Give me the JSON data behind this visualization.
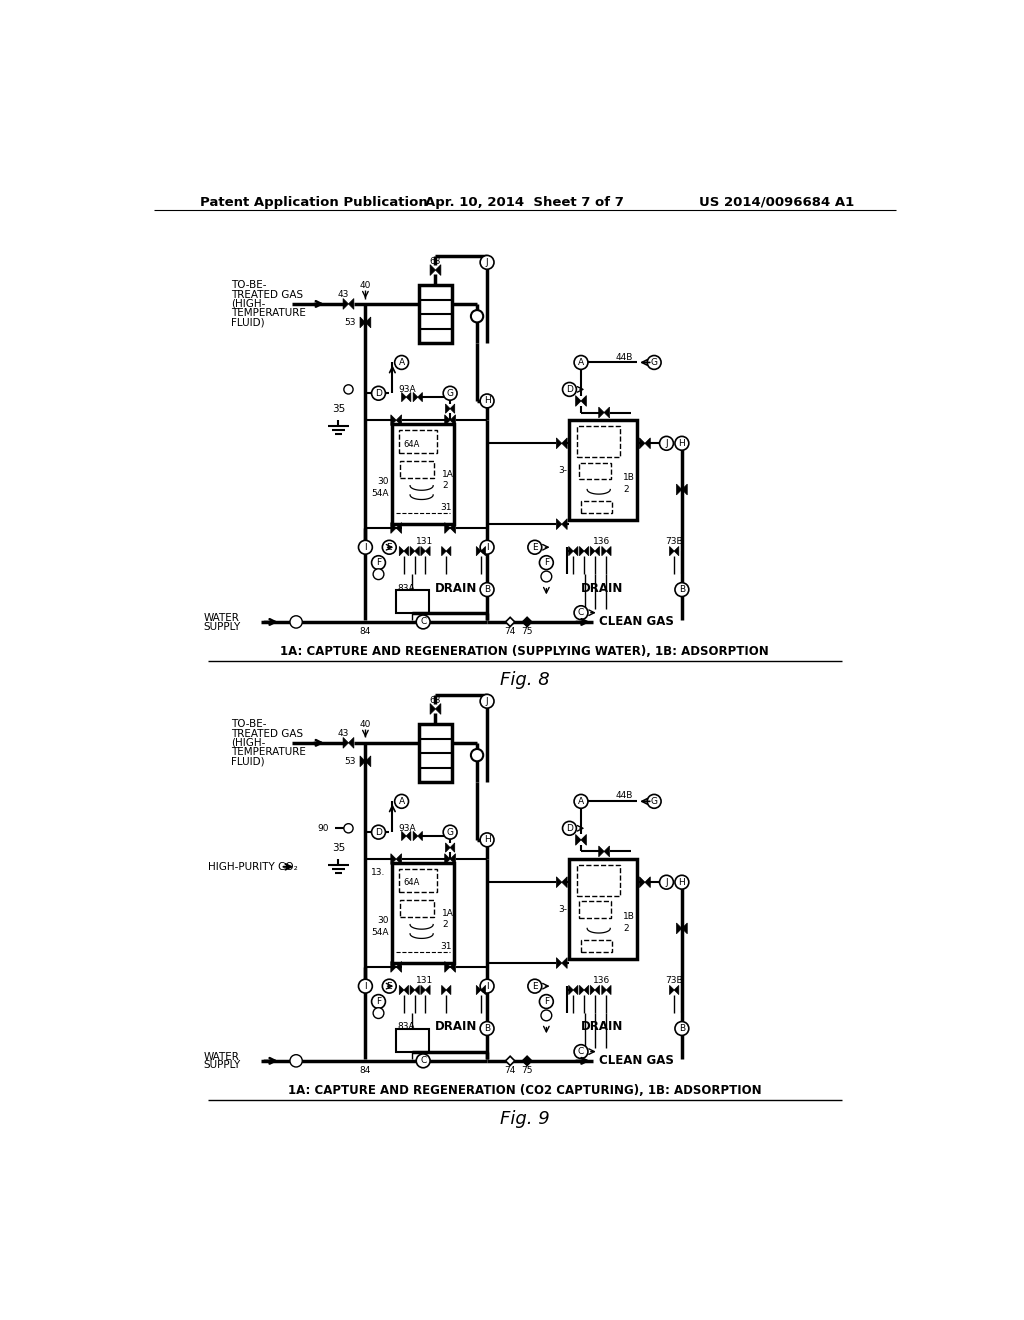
{
  "page_header_left": "Patent Application Publication",
  "page_header_center": "Apr. 10, 2014  Sheet 7 of 7",
  "page_header_right": "US 2014/0096684 A1",
  "fig8_caption": "1A: CAPTURE AND REGENERATION (SUPPLYING WATER), 1B: ADSORPTION",
  "fig8_label": "Fig. 8",
  "fig9_caption": "1A: CAPTURE AND REGENERATION (CO2 CAPTURING), 1B: ADSORPTION",
  "fig9_label": "Fig. 9",
  "bg_color": "#ffffff"
}
